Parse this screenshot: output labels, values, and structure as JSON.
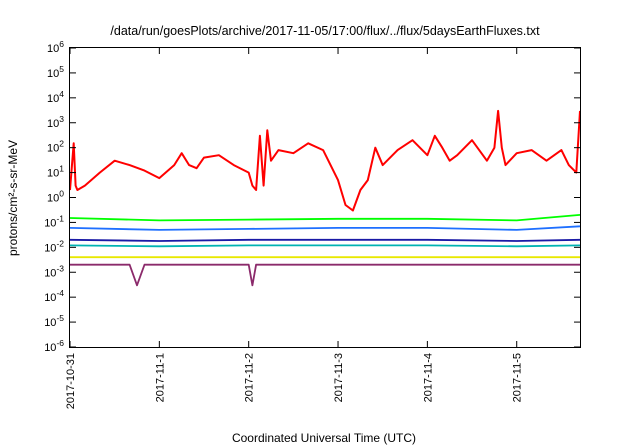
{
  "chart_data": {
    "type": "line",
    "title": "/data/run/goesPlots/archive/2017-11-05/17:00/flux/../flux/5daysEarthFluxes.txt",
    "xlabel": "Coordinated Universal Time (UTC)",
    "ylabel": "protons/cm²-s-sr-MeV",
    "yscale": "log",
    "ylim": [
      1e-06,
      1000000.0
    ],
    "xlim": [
      "2017-10-31T00:00",
      "2017-11-05T17:00"
    ],
    "x_ticks": [
      "2017-10-31",
      "2017-11-1",
      "2017-11-2",
      "2017-11-3",
      "2017-11-4",
      "2017-11-5"
    ],
    "y_ticks": [
      {
        "base": "10",
        "exp": "-6"
      },
      {
        "base": "10",
        "exp": "-5"
      },
      {
        "base": "10",
        "exp": "-4"
      },
      {
        "base": "10",
        "exp": "-3"
      },
      {
        "base": "10",
        "exp": "-2"
      },
      {
        "base": "10",
        "exp": "-1"
      },
      {
        "base": "10",
        "exp": "0"
      },
      {
        "base": "10",
        "exp": "1"
      },
      {
        "base": "10",
        "exp": "2"
      },
      {
        "base": "10",
        "exp": "3"
      },
      {
        "base": "10",
        "exp": "4"
      },
      {
        "base": "10",
        "exp": "5"
      },
      {
        "base": "10",
        "exp": "6"
      }
    ],
    "grid": false,
    "legend": "none",
    "series": [
      {
        "color": "#ff0000",
        "x": [
          "2017-10-31T00:00",
          "2017-10-31T01:00",
          "2017-10-31T01:30",
          "2017-10-31T02:00",
          "2017-10-31T04:00",
          "2017-10-31T08:00",
          "2017-10-31T12:00",
          "2017-10-31T16:00",
          "2017-10-31T20:00",
          "2017-11-01T00:00",
          "2017-11-01T04:00",
          "2017-11-01T06:00",
          "2017-11-01T08:00",
          "2017-11-01T10:00",
          "2017-11-01T12:00",
          "2017-11-01T16:00",
          "2017-11-01T20:00",
          "2017-11-02T00:00",
          "2017-11-02T01:00",
          "2017-11-02T02:00",
          "2017-11-02T03:00",
          "2017-11-02T04:00",
          "2017-11-02T05:00",
          "2017-11-02T06:00",
          "2017-11-02T08:00",
          "2017-11-02T12:00",
          "2017-11-02T16:00",
          "2017-11-02T20:00",
          "2017-11-03T00:00",
          "2017-11-03T02:00",
          "2017-11-03T04:00",
          "2017-11-03T06:00",
          "2017-11-03T08:00",
          "2017-11-03T10:00",
          "2017-11-03T12:00",
          "2017-11-03T16:00",
          "2017-11-03T20:00",
          "2017-11-04T00:00",
          "2017-11-04T02:00",
          "2017-11-04T04:00",
          "2017-11-04T06:00",
          "2017-11-04T08:00",
          "2017-11-04T12:00",
          "2017-11-04T16:00",
          "2017-11-04T18:00",
          "2017-11-04T19:00",
          "2017-11-04T20:00",
          "2017-11-04T21:00",
          "2017-11-05T00:00",
          "2017-11-05T04:00",
          "2017-11-05T08:00",
          "2017-11-05T12:00",
          "2017-11-05T14:00",
          "2017-11-05T16:00",
          "2017-11-05T17:00"
        ],
        "y": [
          2,
          150,
          3,
          2,
          3,
          10,
          30,
          20,
          12,
          6,
          20,
          60,
          20,
          15,
          40,
          50,
          20,
          10,
          3,
          2,
          300,
          3,
          500,
          30,
          80,
          60,
          150,
          80,
          5,
          0.5,
          0.3,
          2,
          5,
          100,
          20,
          80,
          200,
          50,
          300,
          100,
          30,
          50,
          200,
          30,
          100,
          3000,
          100,
          20,
          60,
          80,
          30,
          80,
          20,
          10,
          3000
        ]
      },
      {
        "color": "#00ff00",
        "x": [
          "2017-10-31T00:00",
          "2017-11-01T00:00",
          "2017-11-02T00:00",
          "2017-11-03T00:00",
          "2017-11-04T00:00",
          "2017-11-05T00:00",
          "2017-11-05T17:00"
        ],
        "y": [
          0.15,
          0.12,
          0.13,
          0.14,
          0.14,
          0.12,
          0.2
        ]
      },
      {
        "color": "#1e6fff",
        "x": [
          "2017-10-31T00:00",
          "2017-11-01T00:00",
          "2017-11-02T00:00",
          "2017-11-03T00:00",
          "2017-11-04T00:00",
          "2017-11-05T00:00",
          "2017-11-05T17:00"
        ],
        "y": [
          0.06,
          0.05,
          0.055,
          0.06,
          0.06,
          0.05,
          0.07
        ]
      },
      {
        "color": "#00b3b3",
        "x": [
          "2017-10-31T00:00",
          "2017-11-01T00:00",
          "2017-11-02T00:00",
          "2017-11-03T00:00",
          "2017-11-04T00:00",
          "2017-11-05T00:00",
          "2017-11-05T17:00"
        ],
        "y": [
          0.012,
          0.011,
          0.012,
          0.012,
          0.012,
          0.011,
          0.012
        ]
      },
      {
        "color": "#1a1aa6",
        "x": [
          "2017-10-31T00:00",
          "2017-11-01T00:00",
          "2017-11-02T00:00",
          "2017-11-03T00:00",
          "2017-11-04T00:00",
          "2017-11-05T00:00",
          "2017-11-05T17:00"
        ],
        "y": [
          0.02,
          0.018,
          0.02,
          0.02,
          0.02,
          0.018,
          0.02
        ]
      },
      {
        "color": "#e8e800",
        "x": [
          "2017-10-31T00:00",
          "2017-11-01T00:00",
          "2017-11-02T00:00",
          "2017-11-03T00:00",
          "2017-11-04T00:00",
          "2017-11-05T00:00",
          "2017-11-05T17:00"
        ],
        "y": [
          0.004,
          0.004,
          0.004,
          0.004,
          0.004,
          0.004,
          0.004
        ]
      },
      {
        "color": "#8b2a6b",
        "x": [
          "2017-10-31T00:00",
          "2017-10-31T16:00",
          "2017-10-31T18:00",
          "2017-10-31T20:00",
          "2017-11-01T12:00",
          "2017-11-02T00:00",
          "2017-11-02T01:00",
          "2017-11-02T02:00",
          "2017-11-03T00:00",
          "2017-11-04T00:00",
          "2017-11-05T00:00",
          "2017-11-05T17:00"
        ],
        "y": [
          0.002,
          0.002,
          0.0003,
          0.002,
          0.002,
          0.002,
          0.0003,
          0.002,
          0.002,
          0.002,
          0.002,
          0.002
        ]
      }
    ]
  }
}
